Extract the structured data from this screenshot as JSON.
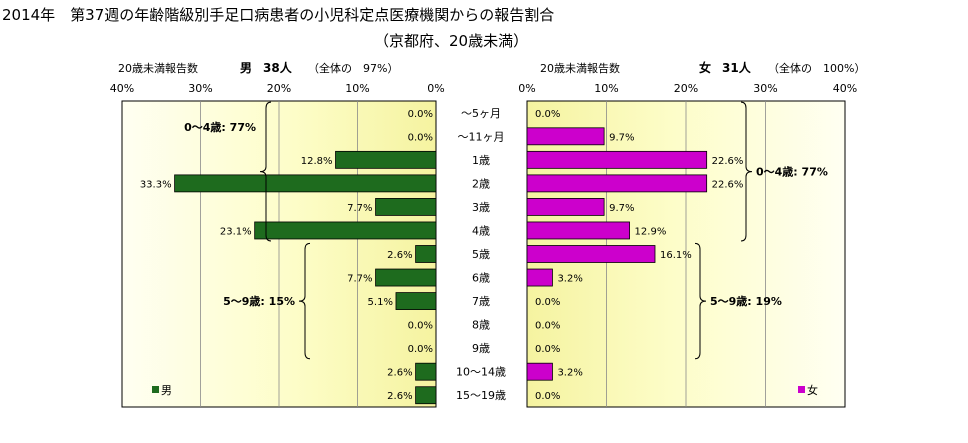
{
  "title": "2014年　第37週の年齢階級別手足口病患者の小児科定点医療機関からの報告割合",
  "subtitle": "（京都府、20歳未満）",
  "chart_data": [
    {
      "type": "bar",
      "orientation": "horizontal",
      "direction": "right-to-left",
      "header": {
        "label": "20歳未満報告数",
        "sex": "男",
        "count": "38人",
        "share": "（全体の　97%）"
      },
      "x_ticks": [
        "40%",
        "30%",
        "20%",
        "10%",
        "0%"
      ],
      "xlim": [
        0,
        40
      ],
      "unit": "%",
      "categories": [
        "～5ヶ月",
        "～11ヶ月",
        "1歳",
        "2歳",
        "3歳",
        "4歳",
        "5歳",
        "6歳",
        "7歳",
        "8歳",
        "9歳",
        "10～14歳",
        "15～19歳"
      ],
      "series": [
        {
          "name": "男",
          "color": "#1e6b1e",
          "values": [
            0.0,
            0.0,
            12.8,
            33.3,
            7.7,
            23.1,
            2.6,
            7.7,
            5.1,
            0.0,
            0.0,
            2.6,
            2.6
          ],
          "labels": [
            "0.0%",
            "0.0%",
            "12.8%",
            "33.3%",
            "7.7%",
            "23.1%",
            "2.6%",
            "7.7%",
            "5.1%",
            "0.0%",
            "0.0%",
            "2.6%",
            "2.6%"
          ]
        }
      ],
      "annotations": [
        {
          "text": "0～4歳: 77%",
          "from": 0,
          "to": 5
        },
        {
          "text": "5～9歳: 15%",
          "from": 6,
          "to": 10
        }
      ],
      "legend": {
        "label": "男",
        "placement": "bottom-left"
      },
      "grid": true
    },
    {
      "type": "bar",
      "orientation": "horizontal",
      "direction": "left-to-right",
      "header": {
        "label": "20歳未満報告数",
        "sex": "女",
        "count": "31人",
        "share": "（全体の　100%）"
      },
      "x_ticks": [
        "0%",
        "10%",
        "20%",
        "30%",
        "40%"
      ],
      "xlim": [
        0,
        40
      ],
      "unit": "%",
      "categories": [
        "～5ヶ月",
        "～11ヶ月",
        "1歳",
        "2歳",
        "3歳",
        "4歳",
        "5歳",
        "6歳",
        "7歳",
        "8歳",
        "9歳",
        "10～14歳",
        "15～19歳"
      ],
      "series": [
        {
          "name": "女",
          "color": "#cc00cc",
          "values": [
            0.0,
            9.7,
            22.6,
            22.6,
            9.7,
            12.9,
            16.1,
            3.2,
            0.0,
            0.0,
            0.0,
            3.2,
            0.0
          ],
          "labels": [
            "0.0%",
            "9.7%",
            "22.6%",
            "22.6%",
            "9.7%",
            "12.9%",
            "16.1%",
            "3.2%",
            "0.0%",
            "0.0%",
            "0.0%",
            "3.2%",
            "0.0%"
          ]
        }
      ],
      "annotations": [
        {
          "text": "0～4歳: 77%",
          "from": 0,
          "to": 5
        },
        {
          "text": "5～9歳: 19%",
          "from": 6,
          "to": 10
        }
      ],
      "legend": {
        "label": "女",
        "placement": "bottom-right"
      },
      "grid": true
    }
  ]
}
